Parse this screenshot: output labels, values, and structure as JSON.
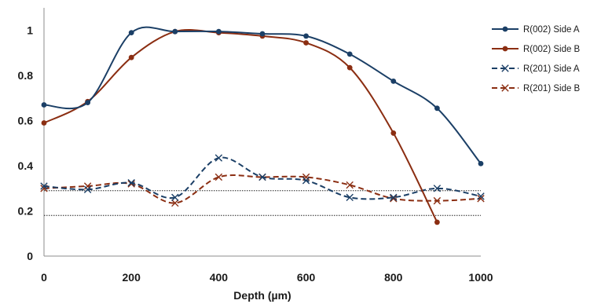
{
  "chart_data": {
    "type": "line",
    "title": "",
    "xlabel": "Depth (µm)",
    "ylabel": "",
    "xlim": [
      0,
      1000
    ],
    "ylim": [
      0,
      1.1
    ],
    "xticks": [
      "0",
      "200",
      "400",
      "600",
      "800",
      "1000"
    ],
    "yticks": [
      "0",
      "0.2",
      "0.4",
      "0.6",
      "0.8",
      "1"
    ],
    "grid": false,
    "legend_position": "right",
    "reference_lines": [
      0.18,
      0.29
    ],
    "series": [
      {
        "name": "R(002) Side A",
        "color": "#1b3f66",
        "marker": "dot",
        "dashed": false,
        "points": [
          [
            0,
            0.67
          ],
          [
            100,
            0.68
          ],
          [
            200,
            0.99
          ],
          [
            300,
            0.995
          ],
          [
            400,
            0.995
          ],
          [
            500,
            0.985
          ],
          [
            600,
            0.975
          ],
          [
            700,
            0.895
          ],
          [
            800,
            0.775
          ],
          [
            900,
            0.655
          ],
          [
            1000,
            0.41
          ]
        ]
      },
      {
        "name": "R(002) Side B",
        "color": "#8b2e12",
        "marker": "dot",
        "dashed": false,
        "points": [
          [
            0,
            0.59
          ],
          [
            100,
            0.685
          ],
          [
            200,
            0.88
          ],
          [
            300,
            0.995
          ],
          [
            400,
            0.99
          ],
          [
            500,
            0.975
          ],
          [
            600,
            0.945
          ],
          [
            700,
            0.835
          ],
          [
            800,
            0.545
          ],
          [
            900,
            0.15
          ]
        ]
      },
      {
        "name": "R(201) Side A",
        "color": "#1b3f66",
        "marker": "x",
        "dashed": true,
        "points": [
          [
            0,
            0.31
          ],
          [
            100,
            0.295
          ],
          [
            200,
            0.325
          ],
          [
            300,
            0.26
          ],
          [
            400,
            0.435
          ],
          [
            500,
            0.35
          ],
          [
            600,
            0.335
          ],
          [
            700,
            0.26
          ],
          [
            800,
            0.26
          ],
          [
            900,
            0.3
          ],
          [
            1000,
            0.265
          ]
        ]
      },
      {
        "name": "R(201) Side B",
        "color": "#8b2e12",
        "marker": "x",
        "dashed": true,
        "points": [
          [
            0,
            0.3
          ],
          [
            100,
            0.31
          ],
          [
            200,
            0.32
          ],
          [
            300,
            0.235
          ],
          [
            400,
            0.35
          ],
          [
            500,
            0.35
          ],
          [
            600,
            0.35
          ],
          [
            700,
            0.315
          ],
          [
            800,
            0.255
          ],
          [
            900,
            0.245
          ],
          [
            1000,
            0.255
          ]
        ]
      }
    ]
  }
}
